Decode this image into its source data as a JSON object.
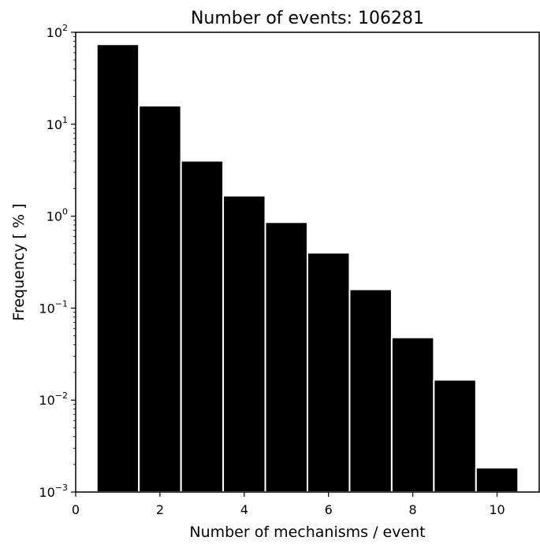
{
  "chart_data": {
    "type": "bar",
    "title": "Number of events: 106281",
    "xlabel": "Number of mechanisms / event",
    "ylabel": "Frequency [ % ]",
    "y_scale": "log",
    "xlim": [
      0,
      11
    ],
    "ylim": [
      0.001,
      100
    ],
    "x_ticks": [
      {
        "value": 0,
        "label": "0"
      },
      {
        "value": 2,
        "label": "2"
      },
      {
        "value": 4,
        "label": "4"
      },
      {
        "value": 6,
        "label": "6"
      },
      {
        "value": 8,
        "label": "8"
      },
      {
        "value": 10,
        "label": "10"
      }
    ],
    "y_ticks": [
      {
        "value": 100,
        "base": "10",
        "exp": "2"
      },
      {
        "value": 10,
        "base": "10",
        "exp": "1"
      },
      {
        "value": 1,
        "base": "10",
        "exp": "0"
      },
      {
        "value": 0.1,
        "base": "10",
        "exp": "−1"
      },
      {
        "value": 0.01,
        "base": "10",
        "exp": "−2"
      },
      {
        "value": 0.001,
        "base": "10",
        "exp": "−3"
      }
    ],
    "categories": [
      1,
      2,
      3,
      4,
      5,
      6,
      7,
      8,
      9,
      10
    ],
    "values": [
      74,
      15.9,
      4.0,
      1.67,
      0.86,
      0.4,
      0.16,
      0.048,
      0.0166,
      0.00184
    ],
    "grid": false,
    "bar_color": "#000000",
    "bar_edge_color": "#ffffff"
  }
}
